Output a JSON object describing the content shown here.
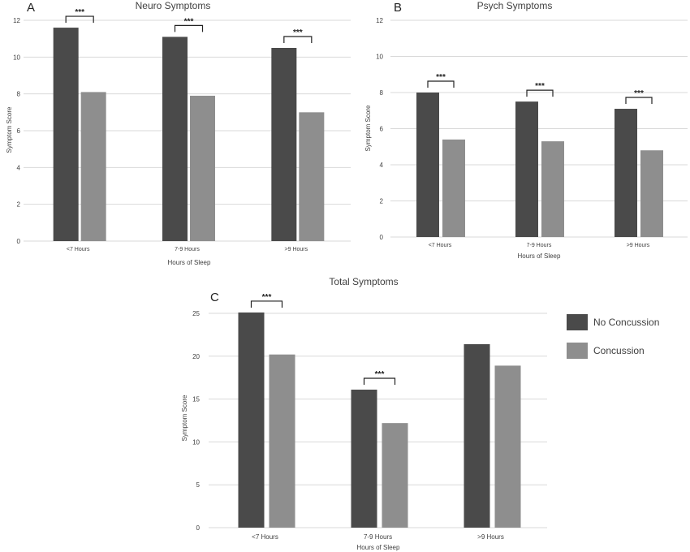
{
  "colors": {
    "no_concussion": "#4a4a4a",
    "concussion": "#8e8e8e",
    "gridline": "#d9d9d9",
    "axis_text": "#404040"
  },
  "legend": {
    "items": [
      {
        "label": "No Concussion",
        "color": "#4a4a4a"
      },
      {
        "label": "Concussion",
        "color": "#8e8e8e"
      }
    ]
  },
  "chart_data": [
    {
      "panel": "A",
      "type": "bar",
      "title": "Neuro Symptoms",
      "xlabel": "Hours of Sleep",
      "ylabel": "Symptom Score",
      "categories": [
        "<7 Hours",
        "7-9 Hours",
        ">9 Hours"
      ],
      "series": [
        {
          "name": "No Concussion",
          "values": [
            11.6,
            11.1,
            10.5
          ]
        },
        {
          "name": "Concussion",
          "values": [
            8.1,
            7.9,
            7.0
          ]
        }
      ],
      "ylim": [
        0,
        12
      ],
      "yticks": [
        0,
        2,
        4,
        6,
        8,
        10,
        12
      ],
      "grid": true,
      "significance": [
        {
          "category": "<7 Hours",
          "label": "***"
        },
        {
          "category": "7-9 Hours",
          "label": "***"
        },
        {
          "category": ">9 Hours",
          "label": "***"
        }
      ]
    },
    {
      "panel": "B",
      "type": "bar",
      "title": "Psych Symptoms",
      "xlabel": "Hours of Sleep",
      "ylabel": "Symptom Score",
      "categories": [
        "<7 Hours",
        "7-9 Hours",
        ">9 Hours"
      ],
      "series": [
        {
          "name": "No Concussion",
          "values": [
            8.0,
            7.5,
            7.1
          ]
        },
        {
          "name": "Concussion",
          "values": [
            5.4,
            5.3,
            4.8
          ]
        }
      ],
      "ylim": [
        0,
        12
      ],
      "yticks": [
        0,
        2,
        4,
        6,
        8,
        10,
        12
      ],
      "grid": true,
      "significance": [
        {
          "category": "<7 Hours",
          "label": "***"
        },
        {
          "category": "7-9 Hours",
          "label": "***"
        },
        {
          "category": ">9 Hours",
          "label": "***"
        }
      ]
    },
    {
      "panel": "C",
      "type": "bar",
      "title": "Total Symptoms",
      "xlabel": "Hours of Sleep",
      "ylabel": "Symptom Score",
      "categories": [
        "<7 Hours",
        "7-9 Hours",
        ">9 Hours"
      ],
      "series": [
        {
          "name": "No Concussion",
          "values": [
            25.1,
            16.1,
            21.4
          ]
        },
        {
          "name": "Concussion",
          "values": [
            20.2,
            12.2,
            18.9
          ]
        }
      ],
      "ylim": [
        0,
        25
      ],
      "yticks": [
        0,
        5,
        10,
        15,
        20,
        25
      ],
      "grid": true,
      "legend_position": "right",
      "significance": [
        {
          "category": "<7 Hours",
          "label": "***"
        },
        {
          "category": "7-9 Hours",
          "label": "***"
        }
      ]
    }
  ]
}
